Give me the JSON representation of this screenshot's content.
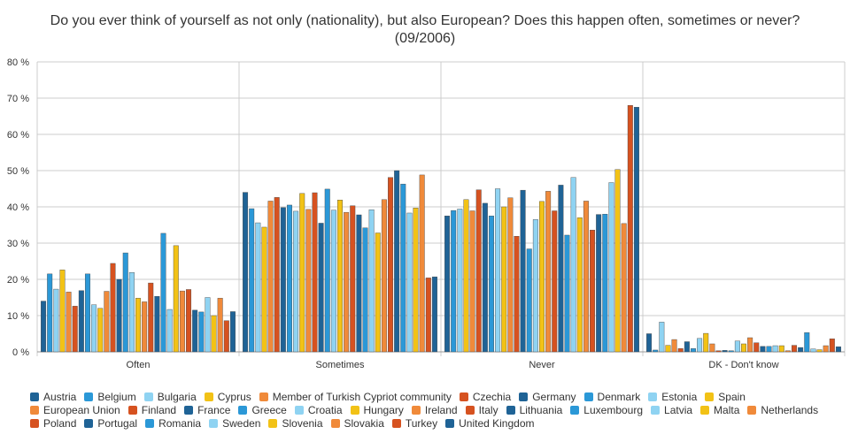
{
  "chart_data": {
    "type": "bar",
    "title": "Do you ever think of yourself as not only (nationality), but also European? Does this happen often, sometimes or never?",
    "subtitle": "(09/2006)",
    "categories": [
      "Often",
      "Sometimes",
      "Never",
      "DK - Don't know"
    ],
    "category_icons": [
      "",
      "",
      "",
      ""
    ],
    "ylim": [
      0,
      80
    ],
    "yticks": [
      "0 %",
      "10 %",
      "20 %",
      "30 %",
      "40 %",
      "50 %",
      "60 %",
      "70 %",
      "80 %"
    ],
    "grid": true,
    "legend": "bottom",
    "series": [
      {
        "name": "Austria",
        "color": "#1f6396",
        "values": [
          14,
          44,
          37.5,
          5
        ]
      },
      {
        "name": "Belgium",
        "color": "#2b98d7",
        "values": [
          21.5,
          39.5,
          39,
          0.5
        ]
      },
      {
        "name": "Bulgaria",
        "color": "#8fd3f2",
        "values": [
          17.3,
          35.6,
          39.4,
          8.2
        ]
      },
      {
        "name": "Cyprus",
        "color": "#f2c216",
        "values": [
          22.6,
          34.4,
          42,
          1.8
        ]
      },
      {
        "name": "Member of Turkish Cypriot community",
        "color": "#f08a3a",
        "values": [
          16.5,
          41.6,
          38.9,
          3.4
        ]
      },
      {
        "name": "Czechia",
        "color": "#d65220",
        "values": [
          12.6,
          42.6,
          44.7,
          0.9
        ]
      },
      {
        "name": "Germany",
        "color": "#1f6396",
        "values": [
          16.9,
          39.8,
          41,
          2.8
        ]
      },
      {
        "name": "Denmark",
        "color": "#2b98d7",
        "values": [
          21.5,
          40.5,
          37.5,
          0.9
        ]
      },
      {
        "name": "Estonia",
        "color": "#8fd3f2",
        "values": [
          13,
          38.8,
          45,
          3.7
        ]
      },
      {
        "name": "Spain",
        "color": "#f2c216",
        "values": [
          12,
          43.7,
          40,
          5.1
        ]
      },
      {
        "name": "European Union",
        "color": "#f08a3a",
        "values": [
          16.7,
          39.3,
          42.5,
          2.2
        ]
      },
      {
        "name": "Finland",
        "color": "#d65220",
        "values": [
          24.4,
          43.9,
          31.9,
          0.3
        ]
      },
      {
        "name": "France",
        "color": "#1f6396",
        "values": [
          20,
          35.5,
          44.6,
          0.4
        ]
      },
      {
        "name": "Greece",
        "color": "#2b98d7",
        "values": [
          27.3,
          44.9,
          28.4,
          0.3
        ]
      },
      {
        "name": "Croatia",
        "color": "#8fd3f2",
        "values": [
          21.9,
          39.1,
          36.5,
          3
        ]
      },
      {
        "name": "Hungary",
        "color": "#f2c216",
        "values": [
          14.8,
          41.9,
          41.5,
          2.2
        ]
      },
      {
        "name": "Ireland",
        "color": "#f08a3a",
        "values": [
          13.8,
          38.5,
          44.3,
          3.9
        ]
      },
      {
        "name": "Italy",
        "color": "#d65220",
        "values": [
          19,
          40.3,
          38.9,
          2.5
        ]
      },
      {
        "name": "Lithuania",
        "color": "#1f6396",
        "values": [
          15.3,
          37.8,
          46,
          1.5
        ]
      },
      {
        "name": "Luxembourg",
        "color": "#2b98d7",
        "values": [
          32.7,
          34.2,
          32.2,
          1.5
        ]
      },
      {
        "name": "Latvia",
        "color": "#8fd3f2",
        "values": [
          11.7,
          39.2,
          48.1,
          1.7
        ]
      },
      {
        "name": "Malta",
        "color": "#f2c216",
        "values": [
          29.3,
          32.8,
          37,
          1.7
        ]
      },
      {
        "name": "Netherlands",
        "color": "#f08a3a",
        "values": [
          16.8,
          42,
          41.6,
          0.3
        ]
      },
      {
        "name": "Poland",
        "color": "#d65220",
        "values": [
          17.2,
          48.1,
          33.6,
          1.8
        ]
      },
      {
        "name": "Portugal",
        "color": "#1f6396",
        "values": [
          11.5,
          50,
          37.9,
          1.2
        ]
      },
      {
        "name": "Romania",
        "color": "#2b98d7",
        "values": [
          11,
          46.3,
          38,
          5.3
        ]
      },
      {
        "name": "Sweden",
        "color": "#8fd3f2",
        "values": [
          15,
          38.3,
          46.7,
          0.8
        ]
      },
      {
        "name": "Slovenia",
        "color": "#f2c216",
        "values": [
          10,
          39.7,
          50.3,
          0.6
        ]
      },
      {
        "name": "Slovakia",
        "color": "#f08a3a",
        "values": [
          14.8,
          48.8,
          35.4,
          1.7
        ]
      },
      {
        "name": "Turkey",
        "color": "#d65220",
        "values": [
          8.6,
          20.4,
          68,
          3.6
        ]
      },
      {
        "name": "United Kingdom",
        "color": "#1f6396",
        "values": [
          11.1,
          20.7,
          67.5,
          1.4
        ]
      }
    ]
  }
}
